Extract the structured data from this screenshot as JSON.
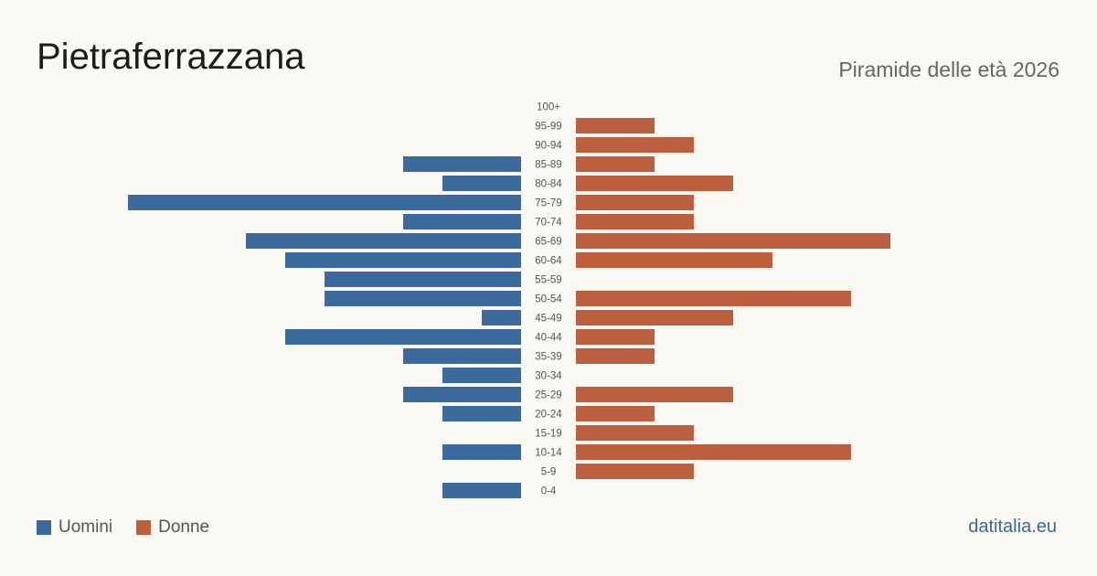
{
  "header": {
    "title": "Pietraferrazzana",
    "subtitle": "Piramide delle età 2026"
  },
  "legend": {
    "men_label": "Uomini",
    "women_label": "Donne"
  },
  "colors": {
    "men": "#3b6a9c",
    "women": "#bb5f3e"
  },
  "brand": "datitalia.eu",
  "chart_data": {
    "type": "bar",
    "orientation": "horizontal-pyramid",
    "categories": [
      "100+",
      "95-99",
      "90-94",
      "85-89",
      "80-84",
      "75-79",
      "70-74",
      "65-69",
      "60-64",
      "55-59",
      "50-54",
      "45-49",
      "40-44",
      "35-39",
      "30-34",
      "25-29",
      "20-24",
      "15-19",
      "10-14",
      "5-9",
      "0-4"
    ],
    "series": [
      {
        "name": "Uomini",
        "values": [
          0,
          0,
          0,
          3,
          2,
          10,
          3,
          7,
          6,
          5,
          5,
          1,
          6,
          3,
          2,
          3,
          2,
          0,
          2,
          0,
          2
        ]
      },
      {
        "name": "Donne",
        "values": [
          0,
          2,
          3,
          2,
          4,
          3,
          3,
          8,
          5,
          0,
          7,
          4,
          2,
          2,
          0,
          4,
          2,
          3,
          7,
          3,
          0
        ]
      }
    ],
    "xlim": [
      0,
      10
    ],
    "grid": false,
    "legend_position": "bottom-left"
  }
}
